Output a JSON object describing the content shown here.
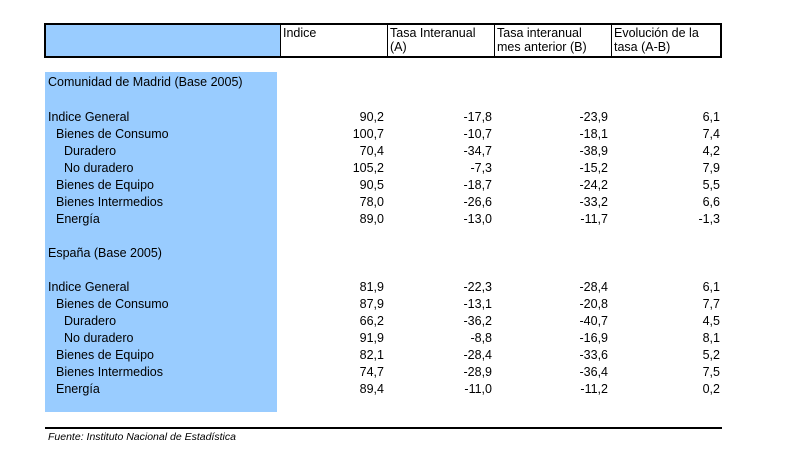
{
  "header": {
    "col0": "",
    "col1_line1": "Indice",
    "col1_line2": "",
    "col2_line1": "Tasa Interanual",
    "col2_line2": "(A)",
    "col3_line1": "Tasa interanual",
    "col3_line2": "mes anterior (B)",
    "col4_line1": "Evolución de la",
    "col4_line2": "tasa (A-B)"
  },
  "madrid": {
    "title": "Comunidad de Madrid (Base 2005)",
    "rows": [
      {
        "label": "Indice General",
        "indice": "90,2",
        "tasa_a": "-17,8",
        "tasa_b": "-23,9",
        "evol": "6,1"
      },
      {
        "label": "Bienes de Consumo",
        "indice": "100,7",
        "tasa_a": "-10,7",
        "tasa_b": "-18,1",
        "evol": "7,4"
      },
      {
        "label": "Duradero",
        "indice": "70,4",
        "tasa_a": "-34,7",
        "tasa_b": "-38,9",
        "evol": "4,2"
      },
      {
        "label": "No duradero",
        "indice": "105,2",
        "tasa_a": "-7,3",
        "tasa_b": "-15,2",
        "evol": "7,9"
      },
      {
        "label": "Bienes de Equipo",
        "indice": "90,5",
        "tasa_a": "-18,7",
        "tasa_b": "-24,2",
        "evol": "5,5"
      },
      {
        "label": "Bienes Intermedios",
        "indice": "78,0",
        "tasa_a": "-26,6",
        "tasa_b": "-33,2",
        "evol": "6,6"
      },
      {
        "label": "Energía",
        "indice": "89,0",
        "tasa_a": "-13,0",
        "tasa_b": "-11,7",
        "evol": "-1,3"
      }
    ]
  },
  "espana": {
    "title": "España (Base 2005)",
    "rows": [
      {
        "label": "Indice General",
        "indice": "81,9",
        "tasa_a": "-22,3",
        "tasa_b": "-28,4",
        "evol": "6,1"
      },
      {
        "label": "Bienes de Consumo",
        "indice": "87,9",
        "tasa_a": "-13,1",
        "tasa_b": "-20,8",
        "evol": "7,7"
      },
      {
        "label": "Duradero",
        "indice": "66,2",
        "tasa_a": "-36,2",
        "tasa_b": "-40,7",
        "evol": "4,5"
      },
      {
        "label": "No duradero",
        "indice": "91,9",
        "tasa_a": "-8,8",
        "tasa_b": "-16,9",
        "evol": "8,1"
      },
      {
        "label": "Bienes de Equipo",
        "indice": "82,1",
        "tasa_a": "-28,4",
        "tasa_b": "-33,6",
        "evol": "5,2"
      },
      {
        "label": "Bienes Intermedios",
        "indice": "74,7",
        "tasa_a": "-28,9",
        "tasa_b": "-36,4",
        "evol": "7,5"
      },
      {
        "label": "Energía",
        "indice": "89,4",
        "tasa_a": "-11,0",
        "tasa_b": "-11,2",
        "evol": "0,2"
      }
    ]
  },
  "footer": {
    "source": "Fuente: Instituto Nacional de Estadística"
  }
}
